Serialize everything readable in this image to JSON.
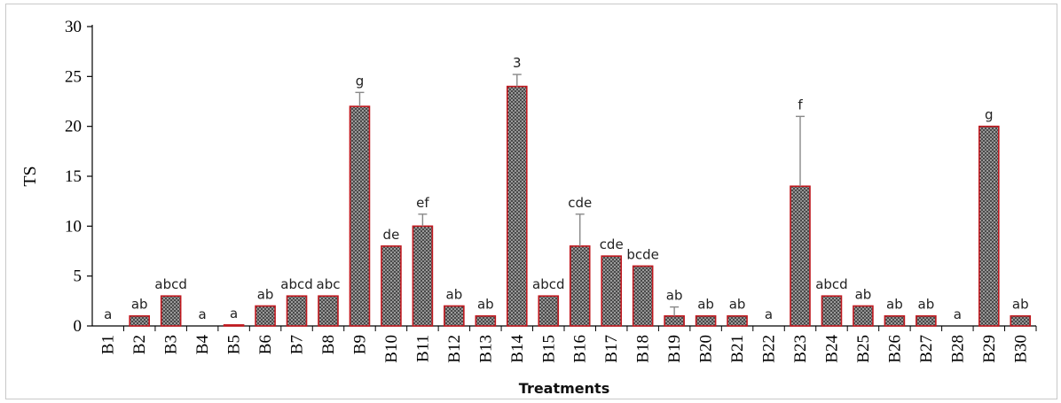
{
  "chart_data": {
    "type": "bar",
    "xlabel": "Treatments",
    "ylabel": "TS",
    "ylim": [
      0,
      30
    ],
    "yticks": [
      0,
      5,
      10,
      15,
      20,
      25,
      30
    ],
    "grid": false,
    "categories": [
      "B1",
      "B2",
      "B3",
      "B4",
      "B5",
      "B6",
      "B7",
      "B8",
      "B9",
      "B10",
      "B11",
      "B12",
      "B13",
      "B14",
      "B15",
      "B16",
      "B17",
      "B18",
      "B19",
      "B20",
      "B21",
      "B22",
      "B23",
      "B24",
      "B25",
      "B26",
      "B27",
      "B28",
      "B29",
      "B30"
    ],
    "values": [
      0,
      1,
      3,
      0,
      0.1,
      2,
      3,
      3,
      22,
      8,
      10,
      2,
      1,
      24,
      3,
      8,
      7,
      6,
      1,
      1,
      1,
      0,
      14,
      3,
      2,
      1,
      1,
      0,
      20,
      1
    ],
    "errors": [
      0,
      0,
      0,
      0,
      0,
      0,
      0,
      0,
      1.4,
      0,
      1.2,
      0,
      0,
      1.2,
      0,
      3.2,
      0,
      0,
      0.9,
      0,
      0,
      0,
      7,
      0,
      0,
      0,
      0,
      0,
      0,
      0
    ],
    "significance_letters": [
      "a",
      "ab",
      "abcd",
      "a",
      "a",
      "ab",
      "abcd",
      "abc",
      "g",
      "de",
      "ef",
      "ab",
      "ab",
      "3",
      "abcd",
      "cde",
      "cde",
      "bcde",
      "ab",
      "ab",
      "ab",
      "a",
      "f",
      "abcd",
      "ab",
      "ab",
      "ab",
      "a",
      "g",
      "ab"
    ],
    "bar_fill": "#555555",
    "bar_edge": "#c0181e",
    "error_color": "#888888"
  }
}
